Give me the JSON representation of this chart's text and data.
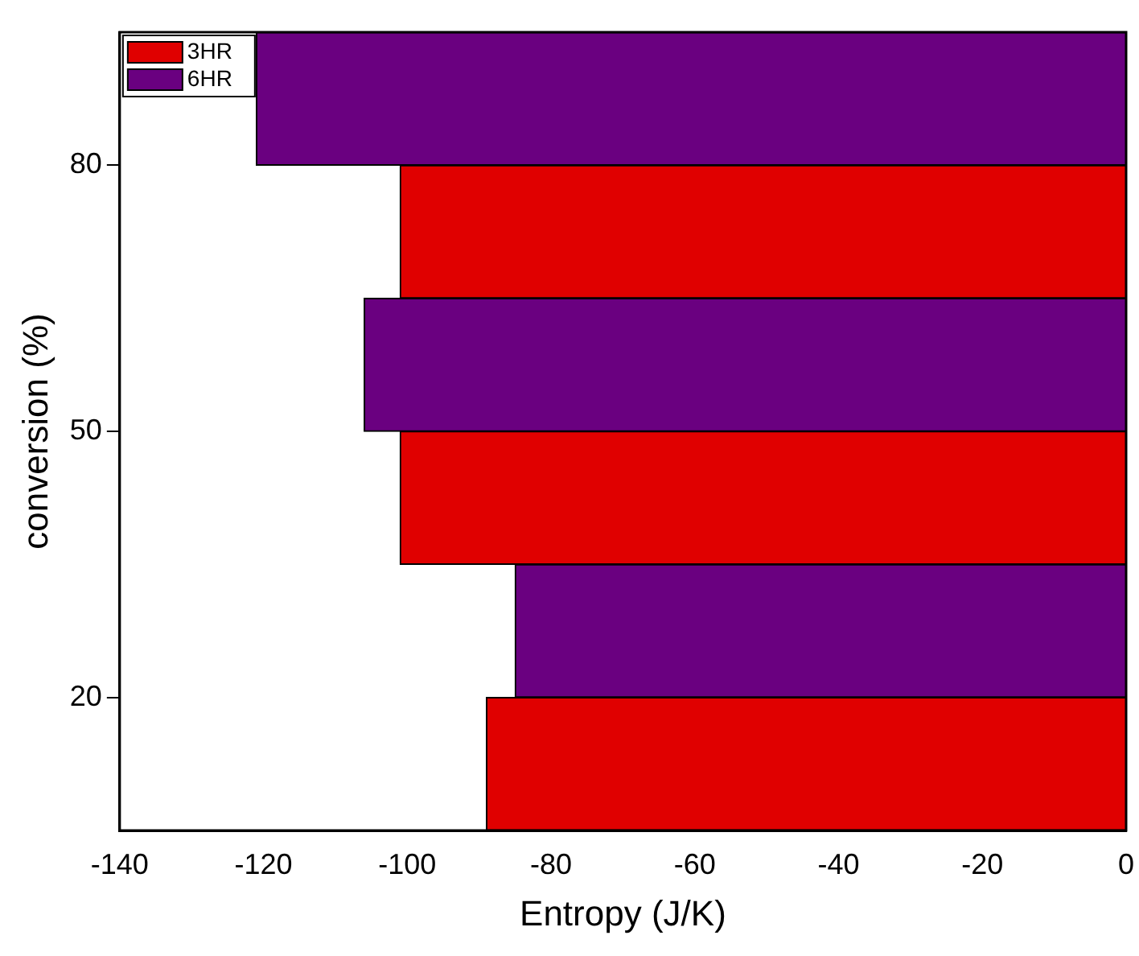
{
  "chart_data": {
    "type": "bar",
    "orientation": "horizontal",
    "xlabel": "Entropy (J/K)",
    "ylabel": "conversion (%)",
    "categories": [
      "80",
      "50",
      "20"
    ],
    "series": [
      {
        "name": "3HR",
        "color": "#e00000",
        "values": [
          -101,
          -101,
          -89
        ]
      },
      {
        "name": "6HR",
        "color": "#6a0080",
        "values": [
          -121,
          -106,
          -85
        ]
      }
    ],
    "xlim": [
      -140,
      0
    ],
    "xticks": [
      -140,
      -120,
      -100,
      -80,
      -60,
      -40,
      -20,
      0
    ],
    "grid": false,
    "legend": "top left"
  }
}
